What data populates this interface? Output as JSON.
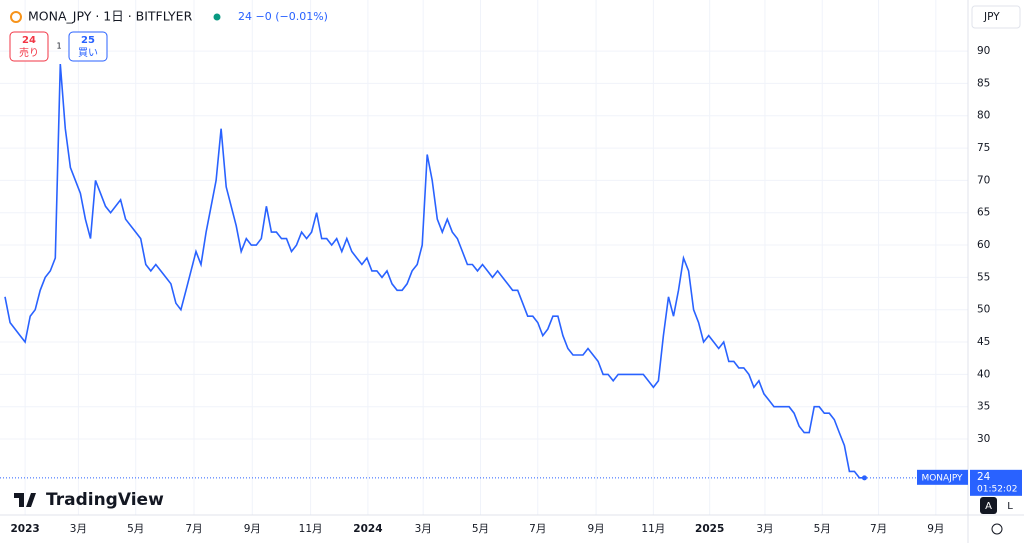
{
  "chart_data": {
    "type": "line",
    "title": "MONA_JPY · 1日 · BITFLYER",
    "quote": "24 −0 (−0.01%)",
    "sell": {
      "price": "24",
      "label": "売り"
    },
    "buy": {
      "price": "25",
      "label": "買い"
    },
    "spread": "1",
    "currency": "JPY",
    "last_label": {
      "symbol": "MONAJPY",
      "price": "24",
      "time": "01:52:02"
    },
    "logo": "TradingView",
    "buttons": [
      "A",
      "L"
    ],
    "series": [
      {
        "name": "MONAJPY",
        "color": "#2962ff",
        "values": [
          52,
          48,
          47,
          46,
          45,
          49,
          50,
          53,
          55,
          56,
          58,
          88,
          78,
          72,
          70,
          68,
          64,
          61,
          70,
          68,
          66,
          65,
          66,
          67,
          64,
          63,
          62,
          61,
          57,
          56,
          57,
          56,
          55,
          54,
          51,
          50,
          53,
          56,
          59,
          57,
          62,
          66,
          70,
          78,
          69,
          66,
          63,
          59,
          61,
          60,
          60,
          61,
          66,
          62,
          62,
          61,
          61,
          59,
          60,
          62,
          61,
          62,
          65,
          61,
          61,
          60,
          61,
          59,
          61,
          59,
          58,
          57,
          58,
          56,
          56,
          55,
          56,
          54,
          53,
          53,
          54,
          56,
          57,
          60,
          74,
          70,
          64,
          62,
          64,
          62,
          61,
          59,
          57,
          57,
          56,
          57,
          56,
          55,
          56,
          55,
          54,
          53,
          53,
          51,
          49,
          49,
          48,
          46,
          47,
          49,
          49,
          46,
          44,
          43,
          43,
          43,
          44,
          43,
          42,
          40,
          40,
          39,
          40,
          40,
          40,
          40,
          40,
          40,
          39,
          38,
          39,
          46,
          52,
          49,
          53,
          58,
          56,
          50,
          48,
          45,
          46,
          45,
          44,
          45,
          42,
          42,
          41,
          41,
          40,
          38,
          39,
          37,
          36,
          35,
          35,
          35,
          35,
          34,
          32,
          31,
          31,
          35,
          35,
          34,
          34,
          33,
          31,
          29,
          25,
          25,
          24,
          24
        ]
      }
    ],
    "xlim": [
      -1,
      191.6
    ],
    "xticks": [
      {
        "value": 4,
        "label": "2023"
      },
      {
        "value": 14.6,
        "label": "3月"
      },
      {
        "value": 26,
        "label": "5月"
      },
      {
        "value": 37.6,
        "label": "7月"
      },
      {
        "value": 49.2,
        "label": "9月"
      },
      {
        "value": 60.8,
        "label": "11月"
      },
      {
        "value": 72.2,
        "label": "2024"
      },
      {
        "value": 83.2,
        "label": "3月"
      },
      {
        "value": 94.6,
        "label": "5月"
      },
      {
        "value": 106,
        "label": "7月"
      },
      {
        "value": 117.6,
        "label": "9月"
      },
      {
        "value": 129,
        "label": "11月"
      },
      {
        "value": 140.2,
        "label": "2025"
      },
      {
        "value": 151.2,
        "label": "3月"
      },
      {
        "value": 162.6,
        "label": "5月"
      },
      {
        "value": 173.8,
        "label": "7月"
      },
      {
        "value": 185.2,
        "label": "9月"
      }
    ],
    "ylim": [
      18.25,
      97.9
    ],
    "yticks": [
      30,
      35,
      40,
      45,
      50,
      55,
      60,
      65,
      70,
      75,
      80,
      85,
      90
    ],
    "grid": true
  }
}
